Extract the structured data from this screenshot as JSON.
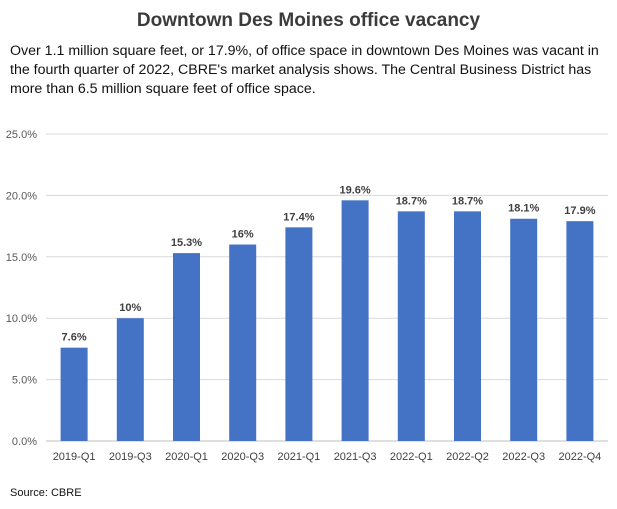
{
  "title": "Downtown Des Moines office vacancy",
  "subtitle": "Over 1.1 million square feet, or 17.9%, of office space in downtown Des Moines was vacant in the fourth quarter of 2022, CBRE's market analysis shows. The Central Business District has more than 6.5 million square feet of office space.",
  "source": "Source: CBRE",
  "chart_data": {
    "type": "bar",
    "categories": [
      "2019-Q1",
      "2019-Q3",
      "2020-Q1",
      "2020-Q3",
      "2021-Q1",
      "2021-Q3",
      "2022-Q1",
      "2022-Q2",
      "2022-Q3",
      "2022-Q4"
    ],
    "values": [
      7.6,
      10,
      15.3,
      16,
      17.4,
      19.6,
      18.7,
      18.7,
      18.1,
      17.9
    ],
    "data_labels": [
      "7.6%",
      "10%",
      "15.3%",
      "16%",
      "17.4%",
      "19.6%",
      "18.7%",
      "18.7%",
      "18.1%",
      "17.9%"
    ],
    "ylim": [
      0,
      25
    ],
    "y_ticks": [
      0,
      5,
      10,
      15,
      20,
      25
    ],
    "y_tick_labels": [
      "0.0%",
      "5.0%",
      "10.0%",
      "15.0%",
      "20.0%",
      "25.0%"
    ],
    "grid": true,
    "bar_color": "#4472c4",
    "xlabel": "",
    "ylabel": ""
  }
}
